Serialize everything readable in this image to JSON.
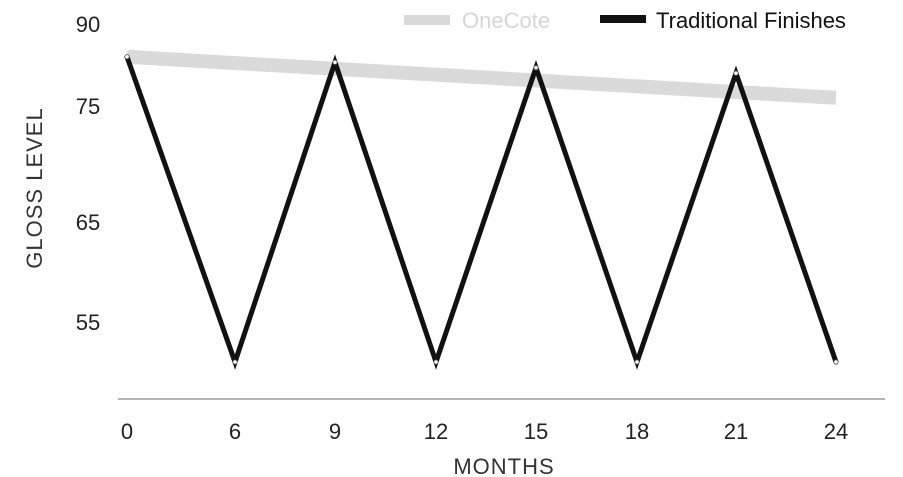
{
  "chart_data": {
    "type": "line",
    "title": "",
    "xlabel": "MONTHS",
    "ylabel": "GLOSS LEVEL",
    "x_ticks": [
      0,
      6,
      9,
      12,
      15,
      18,
      21,
      24
    ],
    "y_ticks": [
      55,
      65,
      75,
      90
    ],
    "legend_placement": "top-right",
    "grid": false,
    "series": [
      {
        "name": "OneCote",
        "color": "#d6d6d6",
        "x": [
          0,
          24
        ],
        "y": [
          84,
          76.5
        ]
      },
      {
        "name": "Traditional Finishes",
        "color": "#111111",
        "x": [
          0,
          6,
          9,
          12,
          15,
          18,
          21,
          24
        ],
        "y": [
          84,
          51,
          83,
          51,
          82,
          51,
          81,
          51
        ]
      }
    ]
  }
}
